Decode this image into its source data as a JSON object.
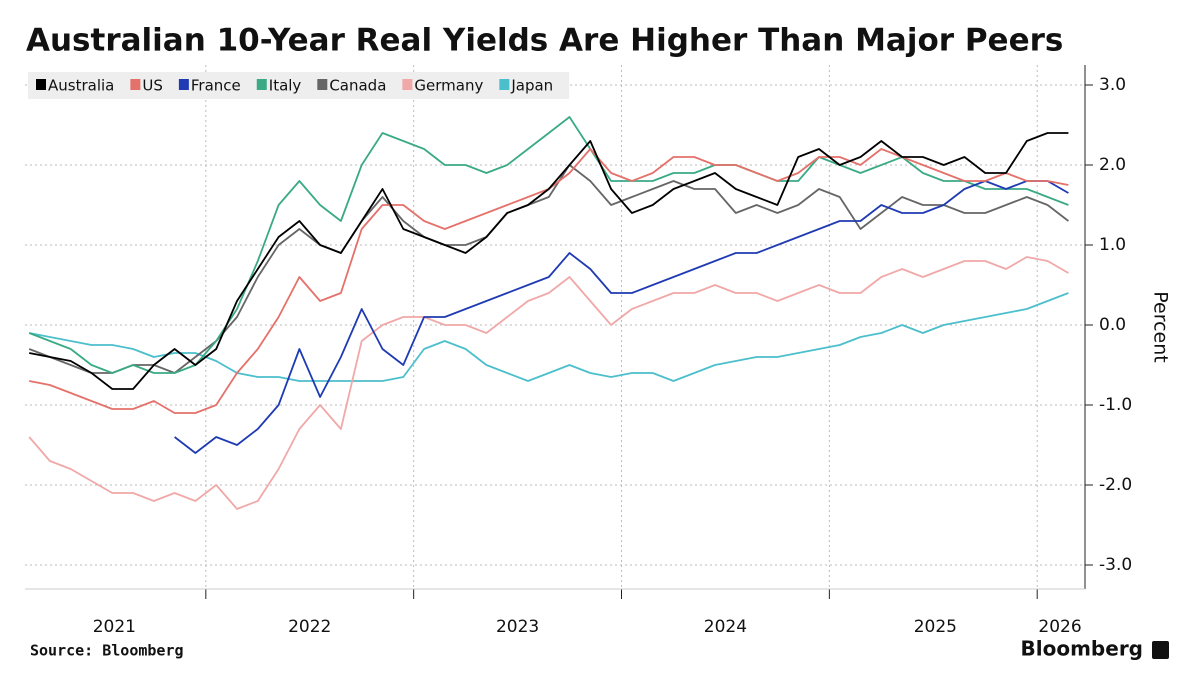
{
  "chart_data": {
    "type": "line",
    "title": "Australian 10-Year Real Yields Are Higher Than Major Peers",
    "y_label": "Percent",
    "source": "Source: Bloomberg",
    "brand": "Bloomberg",
    "x": [
      2021.15,
      2021.25,
      2021.35,
      2021.45,
      2021.55,
      2021.65,
      2021.75,
      2021.85,
      2021.95,
      2022.05,
      2022.15,
      2022.25,
      2022.35,
      2022.45,
      2022.55,
      2022.65,
      2022.75,
      2022.85,
      2022.95,
      2023.05,
      2023.15,
      2023.25,
      2023.35,
      2023.45,
      2023.55,
      2023.65,
      2023.75,
      2023.85,
      2023.95,
      2024.05,
      2024.15,
      2024.25,
      2024.35,
      2024.45,
      2024.55,
      2024.65,
      2024.75,
      2024.85,
      2024.95,
      2025.05,
      2025.15,
      2025.25,
      2025.35,
      2025.45,
      2025.55,
      2025.65,
      2025.75,
      2025.85,
      2025.95,
      2026.05,
      2026.15
    ],
    "xlim": [
      2021.13,
      2026.23
    ],
    "xticks": [
      {
        "value": 2021.56,
        "label": "2021"
      },
      {
        "value": 2022.5,
        "label": "2022"
      },
      {
        "value": 2023.5,
        "label": "2023"
      },
      {
        "value": 2024.5,
        "label": "2024"
      },
      {
        "value": 2025.51,
        "label": "2025"
      },
      {
        "value": 2026.11,
        "label": "2026"
      }
    ],
    "year_boundaries": [
      2022,
      2023,
      2024,
      2025,
      2026
    ],
    "ylim": [
      -3.3,
      3.25
    ],
    "yticks": [
      {
        "value": 3,
        "label": "3.0"
      },
      {
        "value": 2,
        "label": "2.0"
      },
      {
        "value": 1,
        "label": "1.0"
      },
      {
        "value": 0,
        "label": "0.0"
      },
      {
        "value": -1,
        "label": "-1.0"
      },
      {
        "value": -2,
        "label": "-2.0"
      },
      {
        "value": -3,
        "label": "-3.0"
      }
    ],
    "grid": true,
    "legend": "top-left",
    "series": [
      {
        "name": "Australia",
        "color": "#000000",
        "values": [
          -0.35,
          -0.4,
          -0.45,
          -0.6,
          -0.8,
          -0.8,
          -0.5,
          -0.3,
          -0.5,
          -0.3,
          0.3,
          0.7,
          1.1,
          1.3,
          1.0,
          0.9,
          1.3,
          1.7,
          1.2,
          1.1,
          1.0,
          0.9,
          1.1,
          1.4,
          1.5,
          1.7,
          2.0,
          2.3,
          1.7,
          1.4,
          1.5,
          1.7,
          1.8,
          1.9,
          1.7,
          1.6,
          1.5,
          2.1,
          2.2,
          2.0,
          2.1,
          2.3,
          2.1,
          2.1,
          2.0,
          2.1,
          1.9,
          1.9,
          2.3,
          2.4,
          2.4
        ]
      },
      {
        "name": "US",
        "color": "#e4716a",
        "values": [
          -0.7,
          -0.75,
          -0.85,
          -0.95,
          -1.05,
          -1.05,
          -0.95,
          -1.1,
          -1.1,
          -1.0,
          -0.6,
          -0.3,
          0.1,
          0.6,
          0.3,
          0.4,
          1.2,
          1.5,
          1.5,
          1.3,
          1.2,
          1.3,
          1.4,
          1.5,
          1.6,
          1.7,
          1.9,
          2.2,
          1.9,
          1.8,
          1.9,
          2.1,
          2.1,
          2.0,
          2.0,
          1.9,
          1.8,
          1.9,
          2.1,
          2.1,
          2.0,
          2.2,
          2.1,
          2.0,
          1.9,
          1.8,
          1.8,
          1.9,
          1.8,
          1.8,
          1.75
        ]
      },
      {
        "name": "France",
        "color": "#1f3bb3",
        "values": [
          null,
          null,
          null,
          null,
          null,
          null,
          null,
          -1.4,
          -1.6,
          -1.4,
          -1.5,
          -1.3,
          -1.0,
          -0.3,
          -0.9,
          -0.4,
          0.2,
          -0.3,
          -0.5,
          0.1,
          0.1,
          0.2,
          0.3,
          0.4,
          0.5,
          0.6,
          0.9,
          0.7,
          0.4,
          0.4,
          0.5,
          0.6,
          0.7,
          0.8,
          0.9,
          0.9,
          1.0,
          1.1,
          1.2,
          1.3,
          1.3,
          1.5,
          1.4,
          1.4,
          1.5,
          1.7,
          1.8,
          1.7,
          1.8,
          1.8,
          1.65
        ]
      },
      {
        "name": "Italy",
        "color": "#3aaa85",
        "values": [
          -0.1,
          -0.2,
          -0.3,
          -0.5,
          -0.6,
          -0.5,
          -0.6,
          -0.6,
          -0.5,
          -0.2,
          0.2,
          0.8,
          1.5,
          1.8,
          1.5,
          1.3,
          2.0,
          2.4,
          2.3,
          2.2,
          2.0,
          2.0,
          1.9,
          2.0,
          2.2,
          2.4,
          2.6,
          2.2,
          1.8,
          1.8,
          1.8,
          1.9,
          1.9,
          2.0,
          2.0,
          1.9,
          1.8,
          1.8,
          2.1,
          2.0,
          1.9,
          2.0,
          2.1,
          1.9,
          1.8,
          1.8,
          1.7,
          1.7,
          1.7,
          1.6,
          1.5
        ]
      },
      {
        "name": "Canada",
        "color": "#666666",
        "values": [
          -0.3,
          -0.4,
          -0.5,
          -0.6,
          -0.6,
          -0.5,
          -0.5,
          -0.6,
          -0.4,
          -0.2,
          0.1,
          0.6,
          1.0,
          1.2,
          1.0,
          0.9,
          1.3,
          1.6,
          1.3,
          1.1,
          1.0,
          1.0,
          1.1,
          1.4,
          1.5,
          1.6,
          2.0,
          1.8,
          1.5,
          1.6,
          1.7,
          1.8,
          1.7,
          1.7,
          1.4,
          1.5,
          1.4,
          1.5,
          1.7,
          1.6,
          1.2,
          1.4,
          1.6,
          1.5,
          1.5,
          1.4,
          1.4,
          1.5,
          1.6,
          1.5,
          1.3
        ]
      },
      {
        "name": "Germany",
        "color": "#f0a8a8",
        "values": [
          -1.4,
          -1.7,
          -1.8,
          -1.95,
          -2.1,
          -2.1,
          -2.2,
          -2.1,
          -2.2,
          -2.0,
          -2.3,
          -2.2,
          -1.8,
          -1.3,
          -1.0,
          -1.3,
          -0.2,
          0.0,
          0.1,
          0.1,
          0.0,
          0.0,
          -0.1,
          0.1,
          0.3,
          0.4,
          0.6,
          0.3,
          0.0,
          0.2,
          0.3,
          0.4,
          0.4,
          0.5,
          0.4,
          0.4,
          0.3,
          0.4,
          0.5,
          0.4,
          0.4,
          0.6,
          0.7,
          0.6,
          0.7,
          0.8,
          0.8,
          0.7,
          0.85,
          0.8,
          0.65
        ]
      },
      {
        "name": "Japan",
        "color": "#4bbfcc",
        "values": [
          -0.1,
          -0.15,
          -0.2,
          -0.25,
          -0.25,
          -0.3,
          -0.4,
          -0.35,
          -0.35,
          -0.45,
          -0.6,
          -0.65,
          -0.65,
          -0.7,
          -0.7,
          -0.7,
          -0.7,
          -0.7,
          -0.65,
          -0.3,
          -0.2,
          -0.3,
          -0.5,
          -0.6,
          -0.7,
          -0.6,
          -0.5,
          -0.6,
          -0.65,
          -0.6,
          -0.6,
          -0.7,
          -0.6,
          -0.5,
          -0.45,
          -0.4,
          -0.4,
          -0.35,
          -0.3,
          -0.25,
          -0.15,
          -0.1,
          0.0,
          -0.1,
          0.0,
          0.05,
          0.1,
          0.15,
          0.2,
          0.3,
          0.4
        ]
      }
    ]
  }
}
